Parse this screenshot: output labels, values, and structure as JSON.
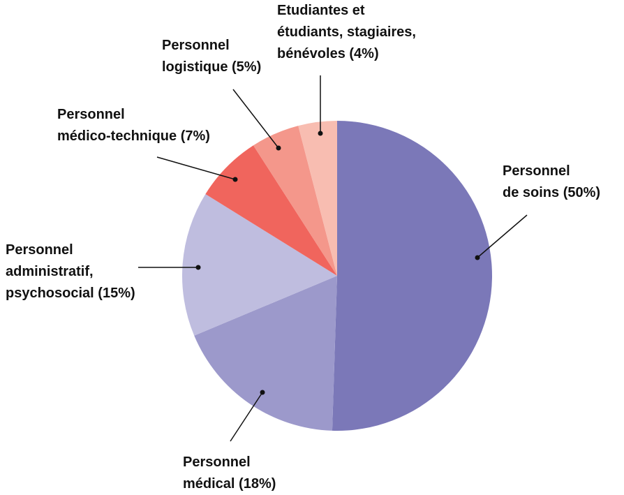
{
  "chart_data": {
    "type": "pie",
    "categories": [
      "Personnel\nde soins",
      "Personnel\nmédical",
      "Personnel\nadministratif,\npsychosocial",
      "Personnel\nmédico-technique",
      "Personnel\nlogistique",
      "Etudiantes et\nétudiants, stagiaires,\nbénévoles"
    ],
    "values": [
      50,
      18,
      15,
      7,
      5,
      4
    ],
    "value_labels": [
      "(50%)",
      "(18%)",
      "(15%)",
      "(7%)",
      "(5%)",
      "(4%)"
    ],
    "colors": [
      "#7b78b8",
      "#9c99cb",
      "#bfbddf",
      "#f0655d",
      "#f4978b",
      "#f8bdb1"
    ]
  }
}
